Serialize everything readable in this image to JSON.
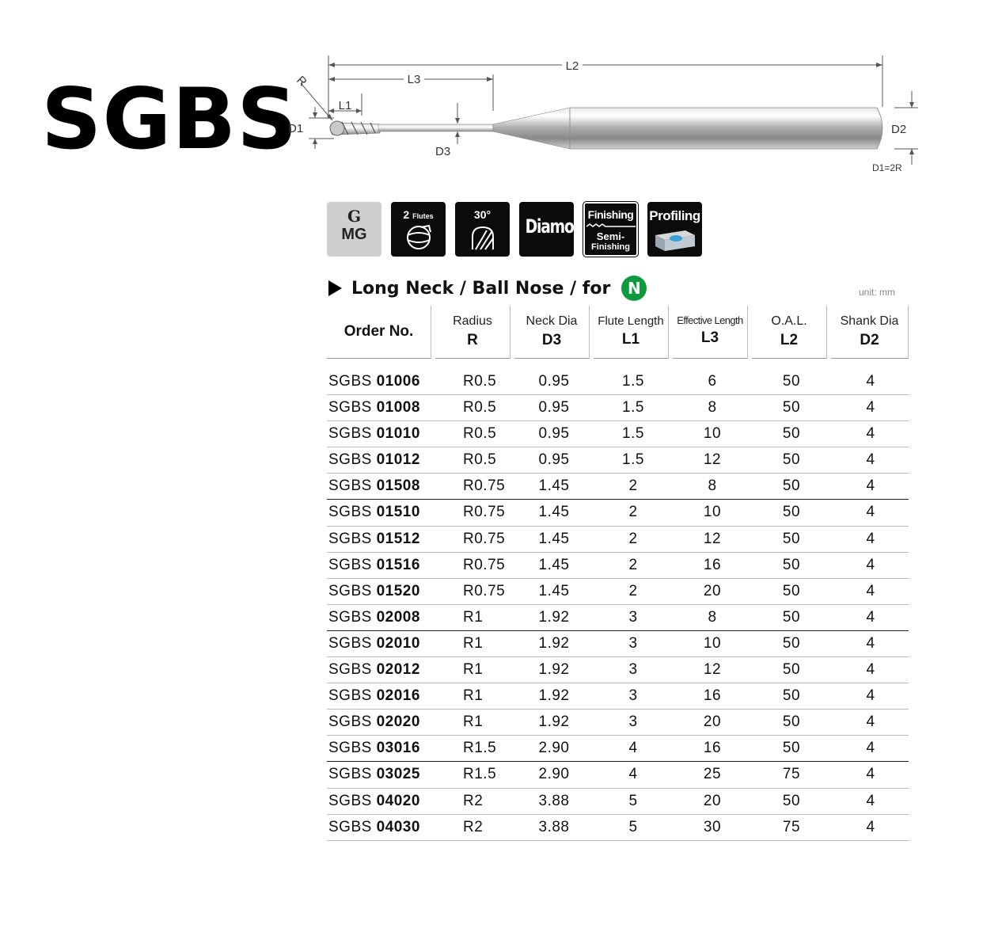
{
  "product_code": "SGBS",
  "diagram_labels": {
    "r": "R",
    "l1": "L1",
    "l2": "L2",
    "l3": "L3",
    "d1": "D1",
    "d2": "D2",
    "d3": "D3",
    "formula": "D1=2R"
  },
  "feature_icons": {
    "material_top": "G",
    "material_bottom": "MG",
    "flutes_num": "2",
    "flutes_word": "Flutes",
    "helix": "30°",
    "coating": "Diamond",
    "finishing": "Finishing",
    "semi_finishing_1": "Semi-",
    "semi_finishing_2": "Finishing",
    "profiling": "Profiling"
  },
  "section": {
    "title": "Long Neck / Ball Nose / for",
    "badge": "N",
    "badge_color": "#0d9a3e",
    "unit": "unit: mm"
  },
  "table": {
    "headers": [
      {
        "line1": "Order No.",
        "line2": ""
      },
      {
        "line1": "Radius",
        "line2": "R"
      },
      {
        "line1": "Neck Dia",
        "line2": "D3"
      },
      {
        "line1": "Flute Length",
        "line2": "L1"
      },
      {
        "line1": "Effective Length",
        "line2": "L3"
      },
      {
        "line1": "O.A.L.",
        "line2": "L2"
      },
      {
        "line1": "Shank Dia",
        "line2": "D2"
      }
    ],
    "rows": [
      {
        "prefix": "SGBS",
        "code": "01006",
        "r": "R0.5",
        "d3": "0.95",
        "l1": "1.5",
        "l3": "6",
        "l2": "50",
        "d2": "4"
      },
      {
        "prefix": "SGBS",
        "code": "01008",
        "r": "R0.5",
        "d3": "0.95",
        "l1": "1.5",
        "l3": "8",
        "l2": "50",
        "d2": "4"
      },
      {
        "prefix": "SGBS",
        "code": "01010",
        "r": "R0.5",
        "d3": "0.95",
        "l1": "1.5",
        "l3": "10",
        "l2": "50",
        "d2": "4"
      },
      {
        "prefix": "SGBS",
        "code": "01012",
        "r": "R0.5",
        "d3": "0.95",
        "l1": "1.5",
        "l3": "12",
        "l2": "50",
        "d2": "4"
      },
      {
        "prefix": "SGBS",
        "code": "01508",
        "r": "R0.75",
        "d3": "1.45",
        "l1": "2",
        "l3": "8",
        "l2": "50",
        "d2": "4"
      },
      {
        "prefix": "SGBS",
        "code": "01510",
        "r": "R0.75",
        "d3": "1.45",
        "l1": "2",
        "l3": "10",
        "l2": "50",
        "d2": "4"
      },
      {
        "prefix": "SGBS",
        "code": "01512",
        "r": "R0.75",
        "d3": "1.45",
        "l1": "2",
        "l3": "12",
        "l2": "50",
        "d2": "4"
      },
      {
        "prefix": "SGBS",
        "code": "01516",
        "r": "R0.75",
        "d3": "1.45",
        "l1": "2",
        "l3": "16",
        "l2": "50",
        "d2": "4"
      },
      {
        "prefix": "SGBS",
        "code": "01520",
        "r": "R0.75",
        "d3": "1.45",
        "l1": "2",
        "l3": "20",
        "l2": "50",
        "d2": "4"
      },
      {
        "prefix": "SGBS",
        "code": "02008",
        "r": "R1",
        "d3": "1.92",
        "l1": "3",
        "l3": "8",
        "l2": "50",
        "d2": "4"
      },
      {
        "prefix": "SGBS",
        "code": "02010",
        "r": "R1",
        "d3": "1.92",
        "l1": "3",
        "l3": "10",
        "l2": "50",
        "d2": "4"
      },
      {
        "prefix": "SGBS",
        "code": "02012",
        "r": "R1",
        "d3": "1.92",
        "l1": "3",
        "l3": "12",
        "l2": "50",
        "d2": "4"
      },
      {
        "prefix": "SGBS",
        "code": "02016",
        "r": "R1",
        "d3": "1.92",
        "l1": "3",
        "l3": "16",
        "l2": "50",
        "d2": "4"
      },
      {
        "prefix": "SGBS",
        "code": "02020",
        "r": "R1",
        "d3": "1.92",
        "l1": "3",
        "l3": "20",
        "l2": "50",
        "d2": "4"
      },
      {
        "prefix": "SGBS",
        "code": "03016",
        "r": "R1.5",
        "d3": "2.90",
        "l1": "4",
        "l3": "16",
        "l2": "50",
        "d2": "4"
      },
      {
        "prefix": "SGBS",
        "code": "03025",
        "r": "R1.5",
        "d3": "2.90",
        "l1": "4",
        "l3": "25",
        "l2": "75",
        "d2": "4"
      },
      {
        "prefix": "SGBS",
        "code": "04020",
        "r": "R2",
        "d3": "3.88",
        "l1": "5",
        "l3": "20",
        "l2": "50",
        "d2": "4"
      },
      {
        "prefix": "SGBS",
        "code": "04030",
        "r": "R2",
        "d3": "3.88",
        "l1": "5",
        "l3": "30",
        "l2": "75",
        "d2": "4"
      }
    ]
  }
}
